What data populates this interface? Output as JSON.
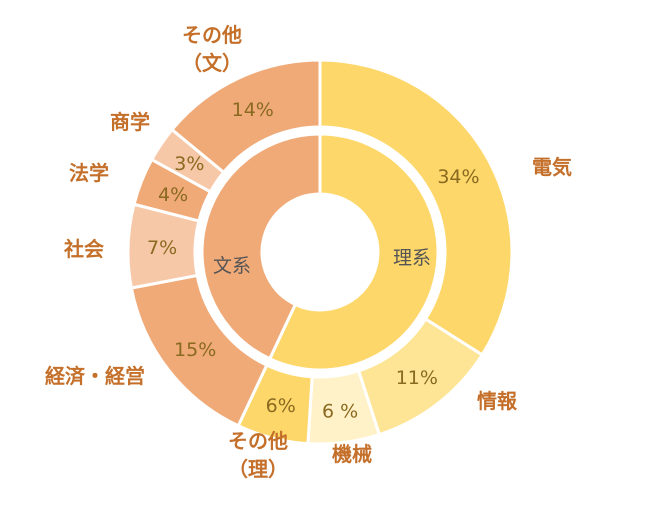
{
  "chart_data": {
    "type": "donut",
    "inner_ring": [
      {
        "name": "理系",
        "value": 57,
        "color": "#fdd76a"
      },
      {
        "name": "文系",
        "value": 43,
        "color": "#f0aa78"
      }
    ],
    "outer_ring": [
      {
        "name": "電気",
        "value": 34,
        "label": "34%",
        "color": "#fdd76a"
      },
      {
        "name": "情報",
        "value": 11,
        "label": "11%",
        "color": "#fee596"
      },
      {
        "name": "機械",
        "value": 6,
        "label": "6 %",
        "color": "#fff1c8"
      },
      {
        "name": "その他\n（理）",
        "value": 6,
        "label": "6%",
        "color": "#fdd76a"
      },
      {
        "name": "経済・経営",
        "value": 15,
        "label": "15%",
        "color": "#f0aa78"
      },
      {
        "name": "社会",
        "value": 7,
        "label": "7%",
        "color": "#f7c8a8"
      },
      {
        "name": "法学",
        "value": 4,
        "label": "4%",
        "color": "#f0aa78"
      },
      {
        "name": "商学",
        "value": 3,
        "label": "3%",
        "color": "#f7c8a8"
      },
      {
        "name": "その他\n（文）",
        "value": 14,
        "label": "14%",
        "color": "#f0aa78"
      }
    ],
    "title": "",
    "legend": "none",
    "colors": {
      "category_label": "#c5702a",
      "percent_label": "#8a6a20",
      "inner_label": "#555555"
    }
  }
}
